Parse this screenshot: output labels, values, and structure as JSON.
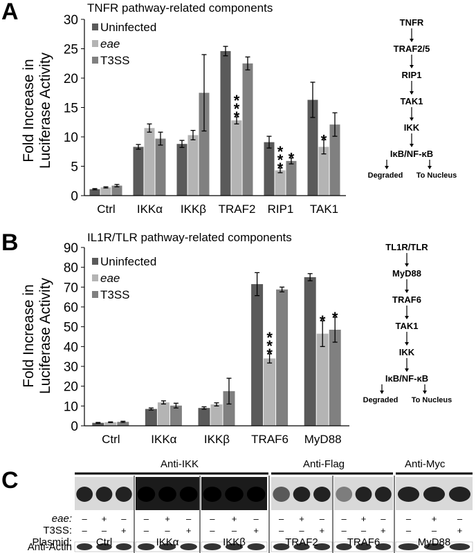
{
  "panels": {
    "a": {
      "letter": "A"
    },
    "b": {
      "letter": "B"
    },
    "c": {
      "letter": "C"
    }
  },
  "colors": {
    "uninfected": "#5a5a5a",
    "eae": "#b4b4b4",
    "t3ss": "#808080"
  },
  "chart_data": [
    {
      "type": "bar",
      "title": "TNFR pathway-related components",
      "ylabel": "Fold Increase in Luciferase Activity",
      "ylabel_lines": [
        "Fold Increase in",
        "Luciferase Activity"
      ],
      "ylim": [
        0,
        30
      ],
      "yticks": [
        "0",
        "5",
        "10",
        "15",
        "20",
        "25",
        "30"
      ],
      "categories": [
        "Ctrl",
        "IKKα",
        "IKKβ",
        "TRAF2",
        "RIP1",
        "TAK1"
      ],
      "legend": "top-left",
      "series": [
        {
          "name": "Uninfected",
          "values": [
            1.1,
            8.3,
            8.8,
            24.6,
            9.1,
            16.3
          ],
          "errors": [
            0.1,
            0.4,
            0.6,
            0.8,
            1.0,
            3.0
          ]
        },
        {
          "name": "eae",
          "values": [
            1.4,
            11.5,
            10.3,
            12.8,
            4.3,
            8.3
          ],
          "errors": [
            0.1,
            0.7,
            0.8,
            0.6,
            0.4,
            1.2
          ]
        },
        {
          "name": "T3SS",
          "values": [
            1.7,
            9.7,
            17.5,
            22.5,
            5.9,
            12.1
          ],
          "errors": [
            0.2,
            1.1,
            6.5,
            1.1,
            0.5,
            2.0
          ]
        }
      ],
      "significance": [
        {
          "category": "TRAF2",
          "series": "eae",
          "label": "***"
        },
        {
          "category": "RIP1",
          "series": "eae",
          "label": "***"
        },
        {
          "category": "RIP1",
          "series": "T3SS",
          "label": "*"
        },
        {
          "category": "TAK1",
          "series": "eae",
          "label": "*"
        }
      ],
      "pathway": [
        "TNFR",
        "TRAF2/5",
        "RIP1",
        "TAK1",
        "IKK",
        "IκB/NF-κB"
      ],
      "pathway_ends": [
        "Degraded",
        "To Nucleus"
      ]
    },
    {
      "type": "bar",
      "title": "IL1R/TLR pathway-related components",
      "ylabel": "Fold Increase in Luciferase Activity",
      "ylabel_lines": [
        "Fold Increase in",
        "Luciferase Activity"
      ],
      "ylim": [
        0,
        90
      ],
      "yticks": [
        "0",
        "10",
        "20",
        "30",
        "40",
        "50",
        "60",
        "70",
        "80",
        "90"
      ],
      "categories": [
        "Ctrl",
        "IKKα",
        "IKKβ",
        "TRAF6",
        "MyD88"
      ],
      "legend": "top-left",
      "series": [
        {
          "name": "Uninfected",
          "values": [
            1.5,
            8.5,
            9.0,
            71.5,
            75.0
          ],
          "errors": [
            0.2,
            0.5,
            0.6,
            5.8,
            1.8
          ]
        },
        {
          "name": "eae",
          "values": [
            1.8,
            11.8,
            10.8,
            34.0,
            46.5
          ],
          "errors": [
            0.2,
            0.8,
            0.8,
            2.3,
            6.5
          ]
        },
        {
          "name": "T3SS",
          "values": [
            2.0,
            10.2,
            17.5,
            68.8,
            48.5
          ],
          "errors": [
            0.3,
            1.2,
            6.5,
            1.2,
            6.3
          ]
        }
      ],
      "significance": [
        {
          "category": "TRAF6",
          "series": "eae",
          "label": "***"
        },
        {
          "category": "MyD88",
          "series": "eae",
          "label": "*"
        },
        {
          "category": "MyD88",
          "series": "T3SS",
          "label": "*"
        }
      ],
      "pathway": [
        "TL1R/TLR",
        "MyD88",
        "TRAF6",
        "TAK1",
        "IKK",
        "IκB/NF-κB"
      ],
      "pathway_ends": [
        "Degraded",
        "To Nucleus"
      ]
    }
  ],
  "blot": {
    "headers": [
      "Anti-IKK",
      "Anti-Flag",
      "Anti-Myc"
    ],
    "row_labels": {
      "eae": "eae:",
      "t3ss": "T3SS:",
      "plasmid": "Plasmid:",
      "actin": "Anti-Actin"
    },
    "plasmids": [
      "Ctrl",
      "IKKα",
      "IKKβ",
      "TRAF2",
      "TRAF6",
      "MyD88"
    ],
    "eae_signs": [
      "–",
      "+",
      "–"
    ],
    "t3ss_signs": [
      "–",
      "–",
      "+"
    ]
  }
}
